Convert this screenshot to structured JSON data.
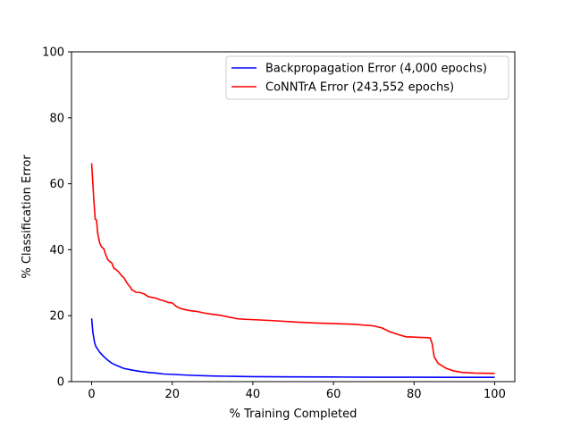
{
  "chart_data": {
    "type": "line",
    "title": "",
    "xlabel": "% Training Completed",
    "ylabel": "% Classification Error",
    "xlim": [
      -5,
      105
    ],
    "ylim": [
      0,
      100
    ],
    "xticks": [
      0,
      20,
      40,
      60,
      80,
      100
    ],
    "yticks": [
      0,
      20,
      40,
      60,
      80,
      100
    ],
    "grid": false,
    "legend": "top-right",
    "series": [
      {
        "name": "Backpropagation Error (4,000 epochs)",
        "color": "#0000ff",
        "x": [
          0,
          0.3,
          0.7,
          1,
          1.5,
          2,
          3,
          4,
          5,
          6,
          7,
          8,
          10,
          12,
          14,
          16,
          18,
          20,
          25,
          30,
          35,
          40,
          50,
          60,
          70,
          80,
          90,
          100
        ],
        "y": [
          19.2,
          15,
          12,
          10.8,
          9.8,
          8.9,
          7.6,
          6.5,
          5.6,
          5.0,
          4.5,
          4.0,
          3.5,
          3.1,
          2.8,
          2.6,
          2.3,
          2.2,
          1.9,
          1.7,
          1.6,
          1.5,
          1.45,
          1.4,
          1.35,
          1.35,
          1.3,
          1.3
        ]
      },
      {
        "name": "CoNNTrA Error (243,552 epochs)",
        "color": "#ff0000",
        "x": [
          0,
          0.3,
          0.6,
          0.9,
          1.2,
          1.5,
          2,
          2.5,
          3,
          3.5,
          4,
          4.5,
          5,
          5.5,
          6,
          6.5,
          7,
          7.5,
          8,
          8.5,
          9,
          9.5,
          10,
          10.5,
          11,
          12,
          13,
          14,
          15,
          16,
          17,
          18,
          19,
          20,
          21,
          22,
          24,
          26,
          28,
          30,
          32,
          34,
          36,
          38,
          40,
          45,
          50,
          55,
          60,
          65,
          70,
          72,
          74,
          76,
          78,
          80,
          82,
          84,
          84.5,
          85,
          86,
          88,
          90,
          92,
          95,
          100
        ],
        "y": [
          66.2,
          60,
          54,
          49.2,
          49,
          45,
          42,
          40.8,
          40.3,
          38.5,
          37,
          36.4,
          36,
          34.4,
          34,
          33.5,
          32.8,
          32,
          31.5,
          30.5,
          29.5,
          28.8,
          27.8,
          27.5,
          27.1,
          27,
          26.6,
          25.8,
          25.5,
          25.3,
          24.8,
          24.5,
          24,
          23.9,
          22.8,
          22.2,
          21.6,
          21.3,
          20.8,
          20.4,
          20.1,
          19.6,
          19.1,
          18.9,
          18.8,
          18.5,
          18.1,
          17.8,
          17.6,
          17.4,
          16.9,
          16.3,
          15.1,
          14.3,
          13.6,
          13.5,
          13.4,
          13.3,
          11.5,
          7.5,
          5.5,
          4.0,
          3.2,
          2.8,
          2.6,
          2.5
        ]
      }
    ]
  }
}
